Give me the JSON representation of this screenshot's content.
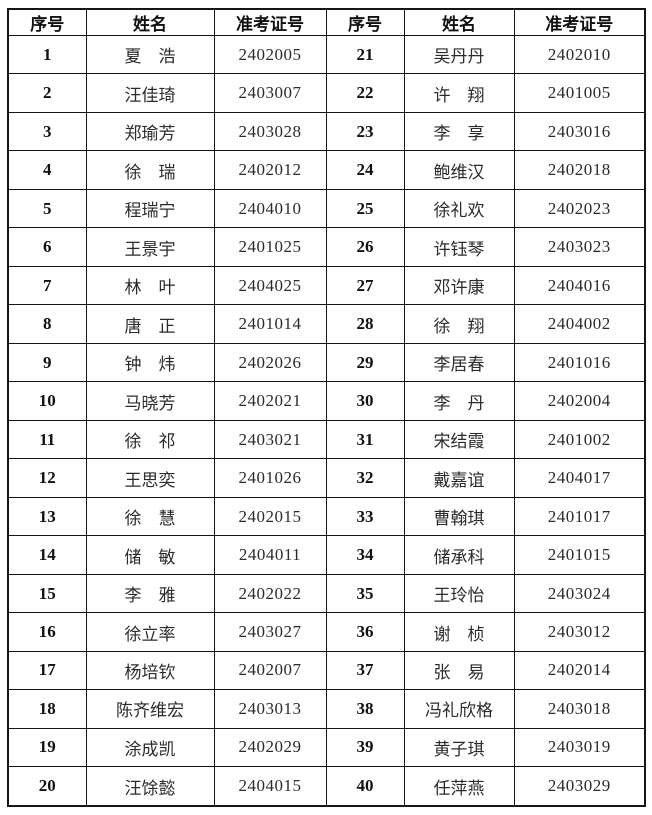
{
  "table": {
    "headers": [
      "序号",
      "姓名",
      "准考证号",
      "序号",
      "姓名",
      "准考证号"
    ],
    "border_color": "#151515",
    "text_color": "#2b2b2b",
    "left": [
      {
        "seq": "1",
        "name": "夏　浩",
        "ticket": "2402005"
      },
      {
        "seq": "2",
        "name": "汪佳琦",
        "ticket": "2403007"
      },
      {
        "seq": "3",
        "name": "郑瑜芳",
        "ticket": "2403028"
      },
      {
        "seq": "4",
        "name": "徐　瑞",
        "ticket": "2402012"
      },
      {
        "seq": "5",
        "name": "程瑞宁",
        "ticket": "2404010"
      },
      {
        "seq": "6",
        "name": "王景宇",
        "ticket": "2401025"
      },
      {
        "seq": "7",
        "name": "林　叶",
        "ticket": "2404025"
      },
      {
        "seq": "8",
        "name": "唐　正",
        "ticket": "2401014"
      },
      {
        "seq": "9",
        "name": "钟　炜",
        "ticket": "2402026"
      },
      {
        "seq": "10",
        "name": "马晓芳",
        "ticket": "2402021"
      },
      {
        "seq": "11",
        "name": "徐　祁",
        "ticket": "2403021"
      },
      {
        "seq": "12",
        "name": "王思奕",
        "ticket": "2401026"
      },
      {
        "seq": "13",
        "name": "徐　慧",
        "ticket": "2402015"
      },
      {
        "seq": "14",
        "name": "储　敏",
        "ticket": "2404011"
      },
      {
        "seq": "15",
        "name": "李　雅",
        "ticket": "2402022"
      },
      {
        "seq": "16",
        "name": "徐立率",
        "ticket": "2403027"
      },
      {
        "seq": "17",
        "name": "杨培钦",
        "ticket": "2402007"
      },
      {
        "seq": "18",
        "name": "陈齐维宏",
        "ticket": "2403013"
      },
      {
        "seq": "19",
        "name": "涂成凯",
        "ticket": "2402029"
      },
      {
        "seq": "20",
        "name": "汪馀懿",
        "ticket": "2404015"
      }
    ],
    "right": [
      {
        "seq": "21",
        "name": "吴丹丹",
        "ticket": "2402010"
      },
      {
        "seq": "22",
        "name": "许　翔",
        "ticket": "2401005"
      },
      {
        "seq": "23",
        "name": "李　享",
        "ticket": "2403016"
      },
      {
        "seq": "24",
        "name": "鲍维汉",
        "ticket": "2402018"
      },
      {
        "seq": "25",
        "name": "徐礼欢",
        "ticket": "2402023"
      },
      {
        "seq": "26",
        "name": "许钰琴",
        "ticket": "2403023"
      },
      {
        "seq": "27",
        "name": "邓许康",
        "ticket": "2404016"
      },
      {
        "seq": "28",
        "name": "徐　翔",
        "ticket": "2404002"
      },
      {
        "seq": "29",
        "name": "李居春",
        "ticket": "2401016"
      },
      {
        "seq": "30",
        "name": "李　丹",
        "ticket": "2402004"
      },
      {
        "seq": "31",
        "name": "宋结霞",
        "ticket": "2401002"
      },
      {
        "seq": "32",
        "name": "戴嘉谊",
        "ticket": "2404017"
      },
      {
        "seq": "33",
        "name": "曹翰琪",
        "ticket": "2401017"
      },
      {
        "seq": "34",
        "name": "储承科",
        "ticket": "2401015"
      },
      {
        "seq": "35",
        "name": "王玲怡",
        "ticket": "2403024"
      },
      {
        "seq": "36",
        "name": "谢　桢",
        "ticket": "2403012"
      },
      {
        "seq": "37",
        "name": "张　易",
        "ticket": "2402014"
      },
      {
        "seq": "38",
        "name": "冯礼欣格",
        "ticket": "2403018"
      },
      {
        "seq": "39",
        "name": "黄子琪",
        "ticket": "2403019"
      },
      {
        "seq": "40",
        "name": "任萍燕",
        "ticket": "2403029"
      }
    ]
  }
}
